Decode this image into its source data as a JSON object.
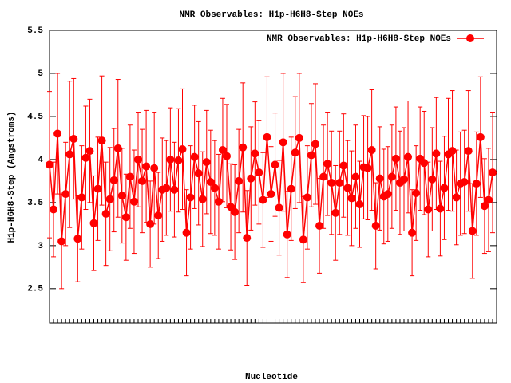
{
  "chart_data": {
    "type": "line",
    "title": "NMR Observables: H1p-H6H8-Step NOEs",
    "x_label": "Nucleotide",
    "y_label": "H1p-H6H8-Step (Angstroms)",
    "legend_position": "upper right",
    "series": [
      {
        "name": "NMR Observables: H1p-H6H8-Step NOEs",
        "color": "#ff0000",
        "values": [
          3.94,
          3.42,
          4.3,
          3.05,
          3.6,
          4.06,
          4.24,
          3.08,
          3.56,
          4.02,
          4.1,
          3.26,
          3.66,
          4.22,
          3.37,
          3.54,
          3.76,
          4.13,
          3.58,
          3.33,
          3.8,
          3.51,
          4.0,
          3.75,
          3.92,
          3.25,
          3.9,
          3.35,
          3.65,
          3.67,
          4.0,
          3.65,
          3.99,
          4.12,
          3.15,
          3.56,
          4.03,
          3.84,
          3.54,
          3.97,
          3.74,
          3.67,
          3.51,
          4.11,
          4.04,
          3.45,
          3.39,
          3.75,
          4.14,
          3.09,
          3.78,
          4.07,
          3.85,
          3.53,
          4.26,
          3.6,
          3.94,
          3.44,
          4.2,
          3.13,
          3.66,
          4.08,
          4.25,
          3.07,
          3.56,
          4.05,
          4.18,
          3.23,
          3.8,
          3.95,
          3.73,
          3.38,
          3.73,
          3.93,
          3.67,
          3.55,
          3.8,
          3.48,
          3.91,
          3.9,
          4.11,
          3.23,
          3.78,
          3.57,
          3.6,
          3.8,
          4.01,
          3.73,
          3.77,
          4.03,
          3.15,
          3.61,
          4.01,
          3.96,
          3.42,
          3.77,
          4.07,
          3.43,
          3.67,
          4.06,
          4.1,
          3.56,
          3.72,
          3.74,
          4.1,
          3.17,
          3.72,
          4.26,
          3.46,
          3.53,
          3.85
        ],
        "errors": [
          0.85,
          0.55,
          0.7,
          0.55,
          0.6,
          0.85,
          0.7,
          0.5,
          0.6,
          0.6,
          0.6,
          0.55,
          0.6,
          0.75,
          0.6,
          0.6,
          0.6,
          0.8,
          0.55,
          0.5,
          0.6,
          0.6,
          0.55,
          0.6,
          0.65,
          0.5,
          0.65,
          0.5,
          0.6,
          0.55,
          0.6,
          0.55,
          0.6,
          0.7,
          0.5,
          0.6,
          0.6,
          0.6,
          0.55,
          0.6,
          0.6,
          0.55,
          0.55,
          0.6,
          0.6,
          0.5,
          0.55,
          0.6,
          0.75,
          0.55,
          0.6,
          0.6,
          0.6,
          0.55,
          0.7,
          0.55,
          0.6,
          0.55,
          0.8,
          0.5,
          0.6,
          0.65,
          0.75,
          0.5,
          0.6,
          0.6,
          0.7,
          0.55,
          0.6,
          0.6,
          0.6,
          0.55,
          0.6,
          0.6,
          0.55,
          0.55,
          0.6,
          0.5,
          0.6,
          0.6,
          0.7,
          0.5,
          0.6,
          0.55,
          0.55,
          0.6,
          0.6,
          0.6,
          0.6,
          0.65,
          0.5,
          0.55,
          0.6,
          0.6,
          0.55,
          0.6,
          0.65,
          0.55,
          0.6,
          0.65,
          0.7,
          0.55,
          0.6,
          0.6,
          0.7,
          0.55,
          0.6,
          0.7,
          0.55,
          0.6,
          0.7
        ]
      }
    ],
    "categories": [
      null,
      null,
      null,
      null,
      null,
      null,
      null,
      null,
      null,
      null,
      null,
      null,
      null,
      null,
      null,
      null,
      null,
      null,
      null,
      null,
      null,
      null,
      null,
      null,
      null,
      null,
      null,
      null,
      null,
      null,
      null,
      null,
      null,
      null,
      null,
      null,
      null,
      null,
      null,
      null,
      null,
      null,
      null,
      null,
      null,
      null,
      null,
      null,
      null,
      null,
      null,
      null,
      null,
      null,
      null,
      null,
      null,
      null,
      null,
      null,
      null,
      null,
      null,
      null,
      null,
      null,
      null,
      null,
      null,
      null,
      null,
      null,
      null,
      null,
      null,
      null,
      null,
      null,
      null,
      null,
      null,
      null,
      null,
      null,
      null,
      null,
      null,
      null,
      null,
      null,
      null,
      null,
      null,
      null,
      null,
      null,
      null,
      null,
      null,
      null,
      null,
      null,
      null,
      null,
      null,
      null,
      null,
      null,
      null,
      null,
      null
    ],
    "ylim": [
      2.1,
      5.5
    ],
    "yticks": [
      2.5,
      3,
      3.5,
      4,
      4.5,
      5,
      5.5
    ]
  }
}
